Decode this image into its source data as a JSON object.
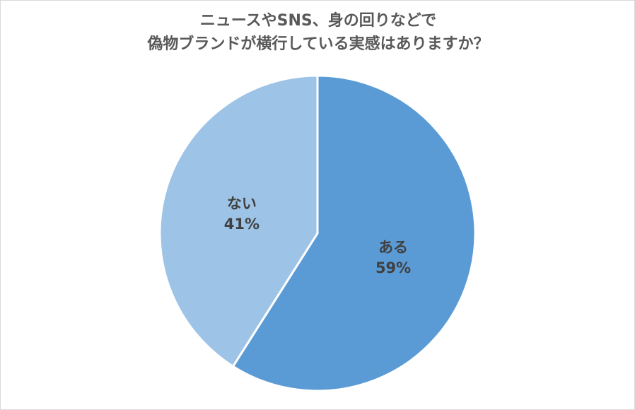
{
  "chart_data": {
    "type": "pie",
    "title_lines": [
      "ニュースやSNS、身の回りなどで",
      "偽物ブランドが横行している実感はありますか？"
    ],
    "slices": [
      {
        "label": "ある",
        "value": 59,
        "value_label": "59%",
        "color": "#5b9bd5"
      },
      {
        "label": "ない",
        "value": 41,
        "value_label": "41%",
        "color": "#9dc3e6"
      }
    ],
    "start": "12 o'clock",
    "direction": "clockwise"
  }
}
